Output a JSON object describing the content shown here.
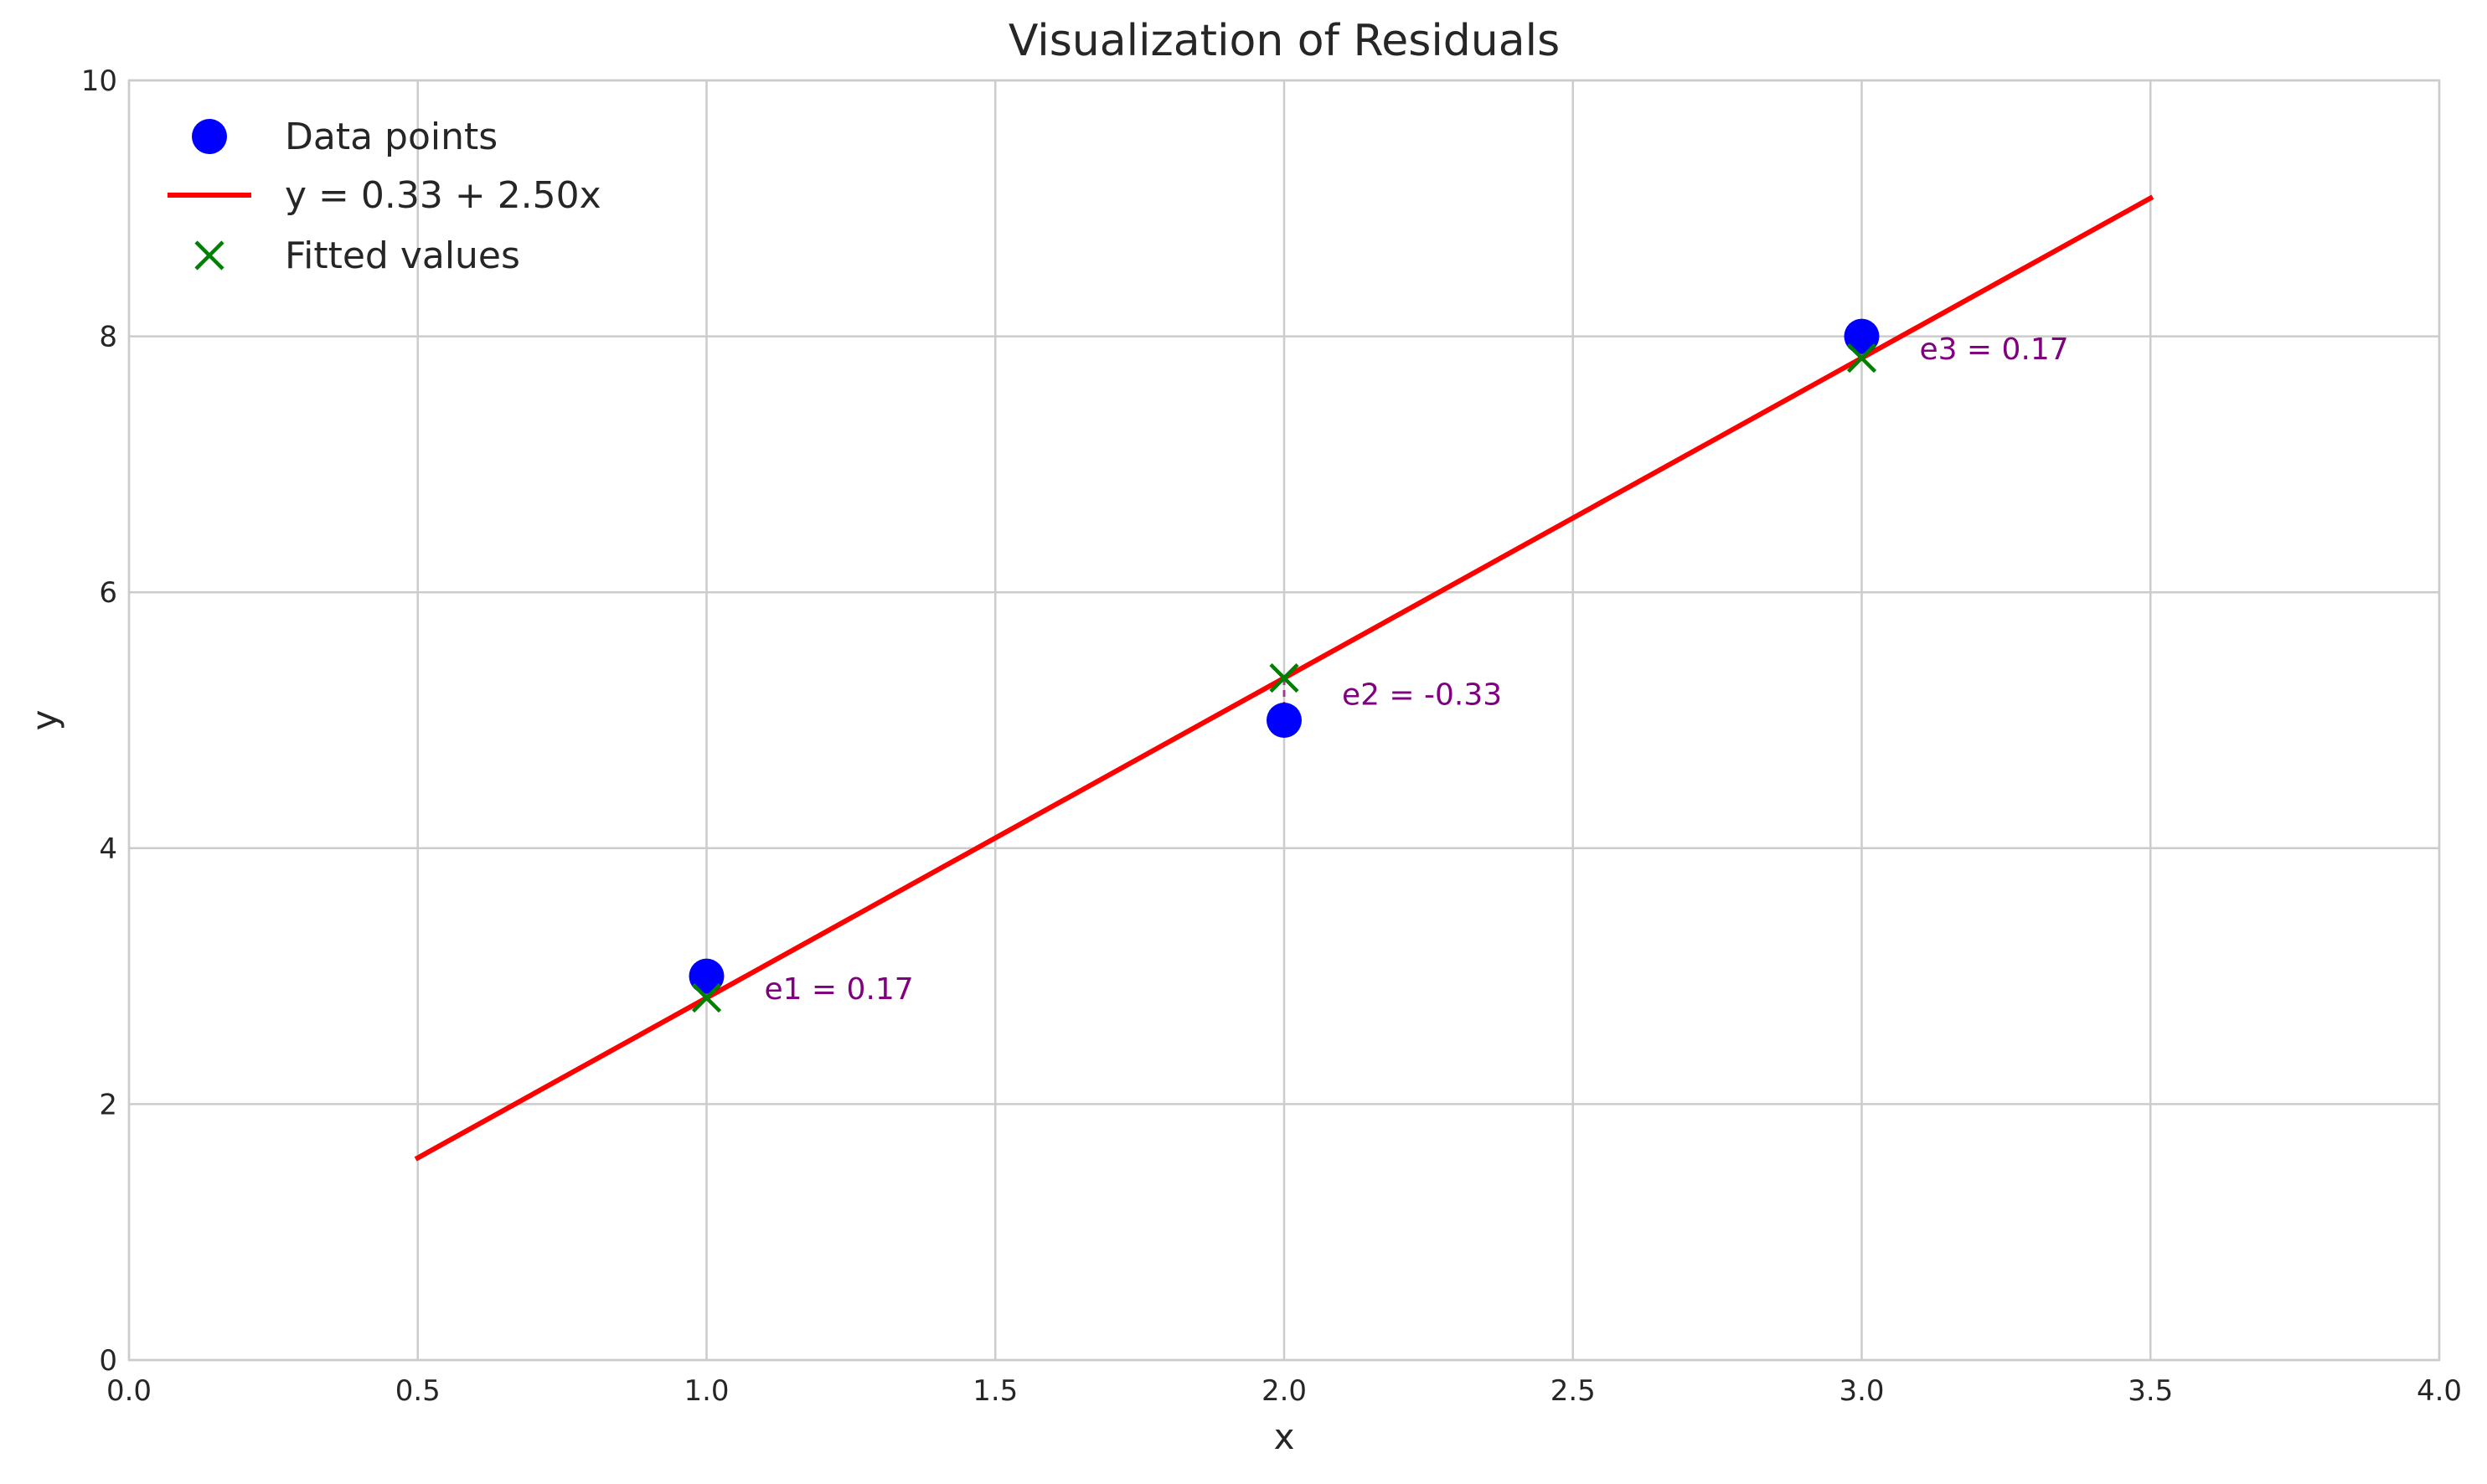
{
  "chart_data": {
    "type": "scatter",
    "title": "Visualization of Residuals",
    "xlabel": "x",
    "ylabel": "y",
    "xlim": [
      0.0,
      4.0
    ],
    "ylim": [
      0,
      10
    ],
    "x_ticks": [
      "0.0",
      "0.5",
      "1.0",
      "1.5",
      "2.0",
      "2.5",
      "3.0",
      "3.5",
      "4.0"
    ],
    "x_tick_values": [
      0.0,
      0.5,
      1.0,
      1.5,
      2.0,
      2.5,
      3.0,
      3.5,
      4.0
    ],
    "y_ticks": [
      "0",
      "2",
      "4",
      "6",
      "8",
      "10"
    ],
    "y_tick_values": [
      0,
      2,
      4,
      6,
      8,
      10
    ],
    "grid": true,
    "legend_position": "top-left",
    "series": [
      {
        "name": "Data points",
        "kind": "scatter",
        "marker": "circle",
        "color": "#0000ff",
        "x": [
          1,
          2,
          3
        ],
        "y": [
          3,
          5,
          8
        ]
      },
      {
        "name": "y = 0.33 + 2.50x",
        "kind": "line",
        "color": "#ff0000",
        "intercept": 0.33,
        "slope": 2.5,
        "x_range": [
          0.5,
          3.5
        ]
      },
      {
        "name": "Fitted values",
        "kind": "scatter",
        "marker": "x",
        "color": "#008000",
        "x": [
          1,
          2,
          3
        ],
        "y": [
          2.83,
          5.33,
          7.83
        ]
      }
    ],
    "residual_segments": {
      "color": "#800080",
      "x": [
        1,
        2,
        3
      ],
      "y_actual": [
        3,
        5,
        8
      ],
      "y_fitted": [
        2.83,
        5.33,
        7.83
      ]
    },
    "annotations": [
      {
        "text": "e1 = 0.17",
        "x": 1.1,
        "y": 2.9,
        "color": "#800080"
      },
      {
        "text": "e2 = -0.33",
        "x": 2.1,
        "y": 5.2,
        "color": "#800080"
      },
      {
        "text": "e3 = 0.17",
        "x": 3.1,
        "y": 7.9,
        "color": "#800080"
      }
    ]
  }
}
